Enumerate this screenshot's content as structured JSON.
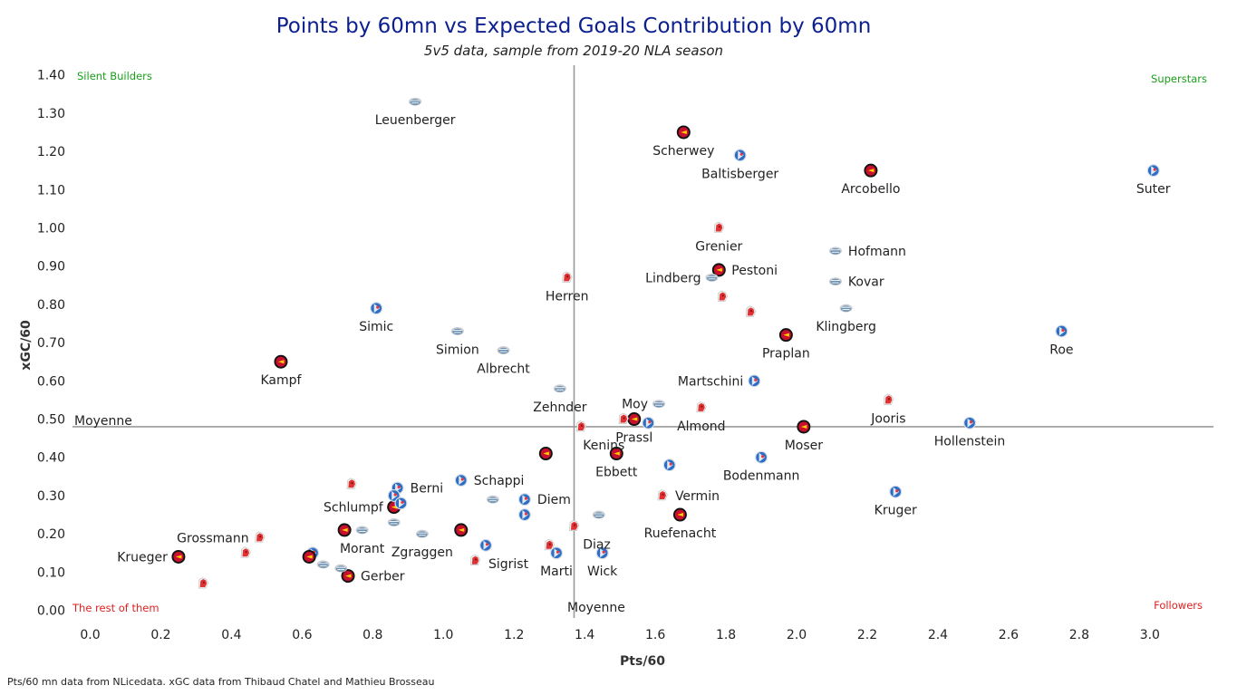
{
  "colors": {
    "title": "#0b1f8f",
    "top_corner": "#1a9e1a",
    "bottom_corner": "#e02020",
    "ref_line": "#9a9a9a"
  },
  "chart_data": {
    "type": "scatter",
    "title": "Points by 60mn vs Expected Goals Contribution by 60mn",
    "subtitle": "5v5 data, sample from 2019-20 NLA season",
    "xlabel": "Pts/60",
    "ylabel": "xGC/60",
    "xlim": [
      -0.05,
      3.18
    ],
    "ylim": [
      -0.02,
      1.43
    ],
    "xticks": [
      0.0,
      0.2,
      0.4,
      0.6,
      0.8,
      1.0,
      1.2,
      1.4,
      1.6,
      1.8,
      2.0,
      2.2,
      2.4,
      2.6,
      2.8,
      3.0
    ],
    "xtick_labels": [
      "0.0",
      "0.2",
      "0.4",
      "0.6",
      "0.8",
      "1.0",
      "1.2",
      "1.4",
      "1.6",
      "1.8",
      "2.0",
      "2.2",
      "2.4",
      "2.6",
      "2.8",
      "3.0"
    ],
    "yticks": [
      0.0,
      0.1,
      0.2,
      0.3,
      0.4,
      0.5,
      0.6,
      0.7,
      0.8,
      0.9,
      1.0,
      1.1,
      1.2,
      1.3,
      1.4
    ],
    "ytick_labels": [
      "0.00",
      "0.10",
      "0.20",
      "0.30",
      "0.40",
      "0.50",
      "0.60",
      "0.70",
      "0.80",
      "0.90",
      "1.00",
      "1.10",
      "1.20",
      "1.30",
      "1.40"
    ],
    "ref_lines": {
      "x": 1.37,
      "y": 0.48,
      "x_label": "Moyenne",
      "y_label": "Moyenne"
    },
    "quadrants": {
      "top_left": "Silent Builders",
      "top_right": "Superstars",
      "bottom_left": "The rest of them",
      "bottom_right": "Followers"
    },
    "team_styles": {
      "lugano": {
        "fill": "#2c6ec4",
        "ring": "#d8dee8",
        "accent": "#ffffff"
      },
      "sccb": {
        "fill": "#c8102e",
        "ring": "#111111",
        "accent": "#ffd000"
      },
      "zug": {
        "fill": "#6b8fb0",
        "ring": "#c9ccd2",
        "accent": "#ffffff"
      },
      "fribourg": {
        "fill": "#e03232",
        "ring": "#f5f5f5",
        "accent": "#8b1010"
      }
    },
    "points": [
      {
        "label": "Leuenberger",
        "x": 0.92,
        "y": 1.33,
        "team": "zug",
        "lp": "below"
      },
      {
        "label": "Scherwey",
        "x": 1.68,
        "y": 1.25,
        "team": "sccb",
        "lp": "below"
      },
      {
        "label": "Baltisberger",
        "x": 1.84,
        "y": 1.19,
        "team": "lugano",
        "lp": "below"
      },
      {
        "label": "Arcobello",
        "x": 2.21,
        "y": 1.15,
        "team": "sccb",
        "lp": "below"
      },
      {
        "label": "Suter",
        "x": 3.01,
        "y": 1.15,
        "team": "lugano",
        "lp": "below"
      },
      {
        "label": "Grenier",
        "x": 1.78,
        "y": 1.0,
        "team": "fribourg",
        "lp": "below"
      },
      {
        "label": "Hofmann",
        "x": 2.11,
        "y": 0.94,
        "team": "zug",
        "lp": "right"
      },
      {
        "label": "Pestoni",
        "x": 1.78,
        "y": 0.89,
        "team": "sccb",
        "lp": "right"
      },
      {
        "label": "Lindberg",
        "x": 1.76,
        "y": 0.87,
        "team": "zug",
        "lp": "left"
      },
      {
        "label": "Kovar",
        "x": 2.11,
        "y": 0.86,
        "team": "zug",
        "lp": "right"
      },
      {
        "label": "Herren",
        "x": 1.35,
        "y": 0.87,
        "team": "fribourg",
        "lp": "below"
      },
      {
        "label": "Simic",
        "x": 0.81,
        "y": 0.79,
        "team": "lugano",
        "lp": "below"
      },
      {
        "label": "Klingberg",
        "x": 2.14,
        "y": 0.79,
        "team": "zug",
        "lp": "below"
      },
      {
        "label": "Simion",
        "x": 1.04,
        "y": 0.73,
        "team": "zug",
        "lp": "below"
      },
      {
        "label": "Praplan",
        "x": 1.97,
        "y": 0.72,
        "team": "sccb",
        "lp": "below"
      },
      {
        "label": "Roe",
        "x": 2.75,
        "y": 0.73,
        "team": "lugano",
        "lp": "below"
      },
      {
        "label": "Albrecht",
        "x": 1.17,
        "y": 0.68,
        "team": "zug",
        "lp": "below"
      },
      {
        "label": "Kampf",
        "x": 0.54,
        "y": 0.65,
        "team": "sccb",
        "lp": "below"
      },
      {
        "label": "Martschini",
        "x": 1.88,
        "y": 0.6,
        "team": "lugano",
        "lp": "left"
      },
      {
        "label": "Zehnder",
        "x": 1.33,
        "y": 0.58,
        "team": "zug",
        "lp": "below"
      },
      {
        "label": "Moy",
        "x": 1.61,
        "y": 0.54,
        "team": "zug",
        "lp": "left"
      },
      {
        "label": "Jooris",
        "x": 2.26,
        "y": 0.55,
        "team": "fribourg",
        "lp": "below"
      },
      {
        "label": "Almond",
        "x": 1.73,
        "y": 0.53,
        "team": "fribourg",
        "lp": "below"
      },
      {
        "label": "Prassl",
        "x": 1.54,
        "y": 0.5,
        "team": "sccb",
        "lp": "below"
      },
      {
        "label": "Kenins",
        "x": 1.39,
        "y": 0.48,
        "team": "fribourg",
        "lp": "belowright"
      },
      {
        "label": "Moser",
        "x": 2.02,
        "y": 0.48,
        "team": "sccb",
        "lp": "below"
      },
      {
        "label": "Hollenstein",
        "x": 2.49,
        "y": 0.49,
        "team": "lugano",
        "lp": "below"
      },
      {
        "label": "Ebbett",
        "x": 1.49,
        "y": 0.41,
        "team": "sccb",
        "lp": "below"
      },
      {
        "label": "Bodenmann",
        "x": 1.9,
        "y": 0.4,
        "team": "lugano",
        "lp": "below"
      },
      {
        "label": "Schappi",
        "x": 1.05,
        "y": 0.34,
        "team": "lugano",
        "lp": "right"
      },
      {
        "label": "Berni",
        "x": 0.87,
        "y": 0.32,
        "team": "lugano",
        "lp": "right"
      },
      {
        "label": "Diem",
        "x": 1.23,
        "y": 0.29,
        "team": "lugano",
        "lp": "right"
      },
      {
        "label": "Vermin",
        "x": 1.62,
        "y": 0.3,
        "team": "fribourg",
        "lp": "right"
      },
      {
        "label": "Kruger",
        "x": 2.28,
        "y": 0.31,
        "team": "lugano",
        "lp": "below"
      },
      {
        "label": "Schlumpf",
        "x": 0.86,
        "y": 0.27,
        "team": "sccb",
        "lp": "left"
      },
      {
        "label": "Grossmann",
        "x": 0.48,
        "y": 0.19,
        "team": "fribourg",
        "lp": "left"
      },
      {
        "label": "Ruefenacht",
        "x": 1.67,
        "y": 0.25,
        "team": "sccb",
        "lp": "below"
      },
      {
        "label": "Diaz",
        "x": 1.37,
        "y": 0.22,
        "team": "fribourg",
        "lp": "belowright"
      },
      {
        "label": "Morant",
        "x": 0.77,
        "y": 0.21,
        "team": "zug",
        "lp": "below"
      },
      {
        "label": "Zgraggen",
        "x": 0.94,
        "y": 0.2,
        "team": "zug",
        "lp": "below"
      },
      {
        "label": "Sigrist",
        "x": 1.12,
        "y": 0.17,
        "team": "lugano",
        "lp": "belowright"
      },
      {
        "label": "Krueger",
        "x": 0.25,
        "y": 0.14,
        "team": "sccb",
        "lp": "left"
      },
      {
        "label": "Marti",
        "x": 1.32,
        "y": 0.15,
        "team": "lugano",
        "lp": "below"
      },
      {
        "label": "Wick",
        "x": 1.45,
        "y": 0.15,
        "team": "lugano",
        "lp": "below"
      },
      {
        "label": "Gerber",
        "x": 0.73,
        "y": 0.09,
        "team": "sccb",
        "lp": "right"
      },
      {
        "label": "",
        "x": 0.74,
        "y": 0.33,
        "team": "fribourg"
      },
      {
        "label": "",
        "x": 0.86,
        "y": 0.3,
        "team": "lugano"
      },
      {
        "label": "",
        "x": 0.88,
        "y": 0.28,
        "team": "lugano"
      },
      {
        "label": "",
        "x": 0.86,
        "y": 0.23,
        "team": "zug"
      },
      {
        "label": "",
        "x": 0.72,
        "y": 0.21,
        "team": "sccb"
      },
      {
        "label": "",
        "x": 1.05,
        "y": 0.21,
        "team": "sccb"
      },
      {
        "label": "",
        "x": 1.14,
        "y": 0.29,
        "team": "zug"
      },
      {
        "label": "",
        "x": 1.23,
        "y": 0.25,
        "team": "lugano"
      },
      {
        "label": "",
        "x": 1.29,
        "y": 0.41,
        "team": "sccb"
      },
      {
        "label": "",
        "x": 1.44,
        "y": 0.25,
        "team": "zug"
      },
      {
        "label": "",
        "x": 1.3,
        "y": 0.17,
        "team": "fribourg"
      },
      {
        "label": "",
        "x": 1.09,
        "y": 0.13,
        "team": "fribourg"
      },
      {
        "label": "",
        "x": 0.44,
        "y": 0.15,
        "team": "fribourg"
      },
      {
        "label": "",
        "x": 0.32,
        "y": 0.07,
        "team": "fribourg"
      },
      {
        "label": "",
        "x": 0.63,
        "y": 0.15,
        "team": "lugano"
      },
      {
        "label": "",
        "x": 0.62,
        "y": 0.14,
        "team": "sccb"
      },
      {
        "label": "",
        "x": 0.66,
        "y": 0.12,
        "team": "zug"
      },
      {
        "label": "",
        "x": 0.71,
        "y": 0.11,
        "team": "zug"
      },
      {
        "label": "",
        "x": 1.51,
        "y": 0.5,
        "team": "fribourg"
      },
      {
        "label": "",
        "x": 1.58,
        "y": 0.49,
        "team": "lugano"
      },
      {
        "label": "",
        "x": 1.64,
        "y": 0.38,
        "team": "lugano"
      },
      {
        "label": "",
        "x": 1.79,
        "y": 0.82,
        "team": "fribourg"
      },
      {
        "label": "",
        "x": 1.87,
        "y": 0.78,
        "team": "fribourg"
      }
    ]
  },
  "footer": "Pts/60 mn data from NLicedata. xGC data from Thibaud Chatel and Mathieu Brosseau"
}
